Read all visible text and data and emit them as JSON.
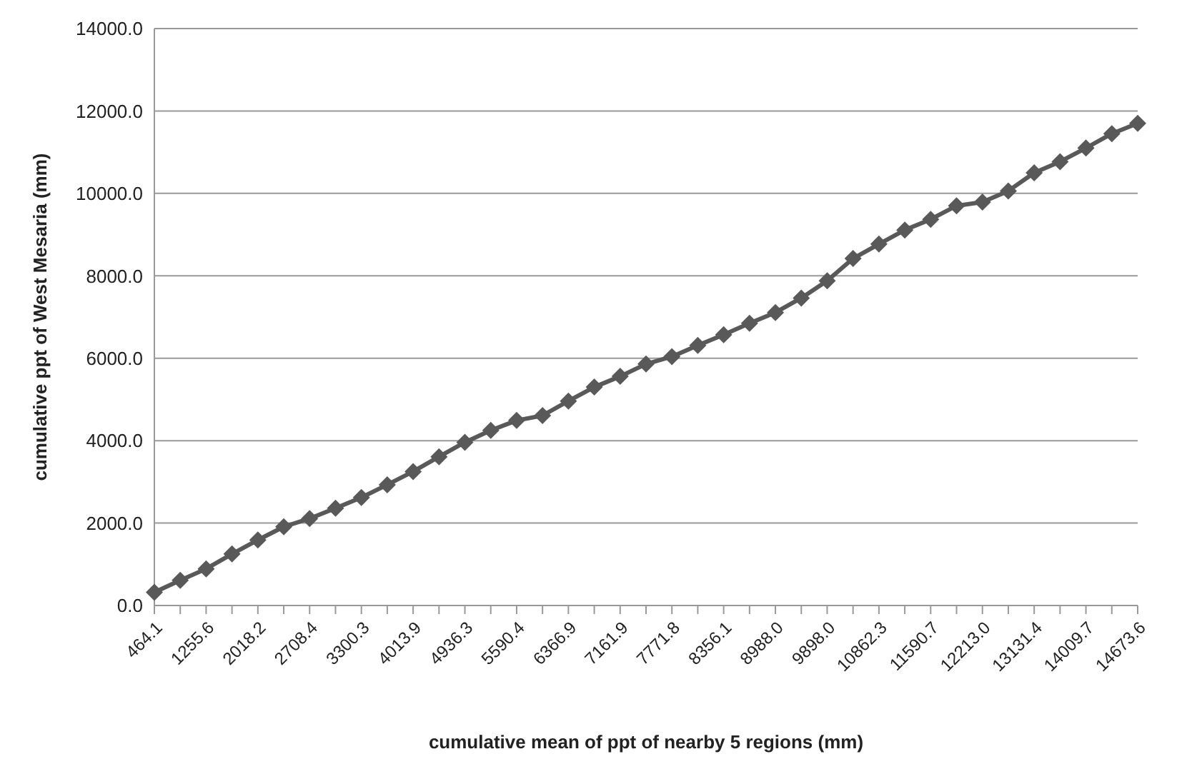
{
  "chart_data": {
    "type": "line",
    "xlabel": "cumulative mean of ppt of nearby 5 regions (mm)",
    "ylabel": "cumulative ppt of West Mesaria (mm)",
    "categories": [
      "464.1",
      null,
      "1255.6",
      null,
      "2018.2",
      null,
      "2708.4",
      null,
      "3300.3",
      null,
      "4013.9",
      null,
      "4936.3",
      null,
      "5590.4",
      null,
      "6366.9",
      null,
      "7161.9",
      null,
      "7771.8",
      null,
      "8356.1",
      null,
      "8988.0",
      null,
      "9898.0",
      null,
      "10862.3",
      null,
      "11590.7",
      null,
      "12213.0",
      null,
      "13131.4",
      null,
      "14009.7",
      null,
      "14673.6"
    ],
    "series": [
      {
        "color": "#595959",
        "values": [
          320,
          610,
          890,
          1250,
          1590,
          1910,
          2110,
          2360,
          2620,
          2930,
          3250,
          3610,
          3960,
          4250,
          4490,
          4610,
          4960,
          5300,
          5560,
          5860,
          6040,
          6310,
          6570,
          6850,
          7110,
          7460,
          7880,
          8420,
          8770,
          9110,
          9370,
          9700,
          9790,
          10060,
          10500,
          10770,
          11100,
          11450,
          11700
        ]
      }
    ],
    "ylim": [
      0,
      14000
    ],
    "yticks": [
      {
        "value": 0,
        "label": "0.0"
      },
      {
        "value": 2000,
        "label": "2000.0"
      },
      {
        "value": 4000,
        "label": "4000.0"
      },
      {
        "value": 6000,
        "label": "6000.0"
      },
      {
        "value": 8000,
        "label": "8000.0"
      },
      {
        "value": 10000,
        "label": "10000.0"
      },
      {
        "value": 12000,
        "label": "12000.0"
      },
      {
        "value": 14000,
        "label": "14000.0"
      }
    ],
    "grid": "y",
    "marker": "diamond",
    "line_style": "solid"
  }
}
